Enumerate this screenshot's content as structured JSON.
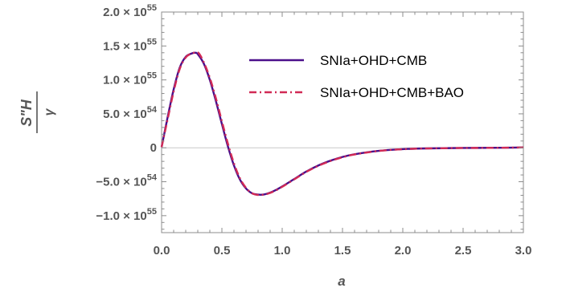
{
  "chart_data": {
    "type": "line",
    "xlabel": "a",
    "ylabel": {
      "numerator": "S\"H",
      "denominator": "γ"
    },
    "xlim": [
      0,
      3
    ],
    "ylim": [
      -1.25e+55,
      2e+55
    ],
    "x_ticks": [
      {
        "value": 0.0,
        "label": "0.0"
      },
      {
        "value": 0.5,
        "label": "0.5"
      },
      {
        "value": 1.0,
        "label": "1.0"
      },
      {
        "value": 1.5,
        "label": "1.5"
      },
      {
        "value": 2.0,
        "label": "2.0"
      },
      {
        "value": 2.5,
        "label": "2.5"
      },
      {
        "value": 3.0,
        "label": "3.0"
      }
    ],
    "y_ticks": [
      {
        "value": 2e+55,
        "mantissa": "2.0 × 10",
        "exp": "55"
      },
      {
        "value": 1.5e+55,
        "mantissa": "1.5 × 10",
        "exp": "55"
      },
      {
        "value": 1e+55,
        "mantissa": "1.0 × 10",
        "exp": "55"
      },
      {
        "value": 5e+54,
        "mantissa": "5.0 × 10",
        "exp": "54"
      },
      {
        "value": 0,
        "mantissa": "0",
        "exp": ""
      },
      {
        "value": -5e+54,
        "mantissa": "−5.0 × 10",
        "exp": "54"
      },
      {
        "value": -1e+55,
        "mantissa": "−1.0 × 10",
        "exp": "55"
      }
    ],
    "series": [
      {
        "name": "SNIa+OHD+CMB",
        "color": "#4b0f8a",
        "style": "solid",
        "x": [
          0.0,
          0.05,
          0.1,
          0.15,
          0.2,
          0.25,
          0.28,
          0.3,
          0.35,
          0.4,
          0.45,
          0.5,
          0.55,
          0.6,
          0.65,
          0.7,
          0.75,
          0.8,
          0.84,
          0.9,
          0.95,
          1.0,
          1.1,
          1.2,
          1.3,
          1.4,
          1.5,
          1.6,
          1.8,
          2.0,
          2.2,
          2.5,
          2.8,
          3.0
        ],
        "y": [
          1e+53,
          4.5e+54,
          8.6e+54,
          1.18e+55,
          1.34e+55,
          1.39e+55,
          1.4e+55,
          1.38e+55,
          1.24e+55,
          1e+55,
          6.9e+54,
          3.5e+54,
          2e+53,
          -2.6e+54,
          -4.7e+54,
          -6e+54,
          -6.7e+54,
          -6.9e+54,
          -6.9e+54,
          -6.6e+54,
          -6.2e+54,
          -5.7e+54,
          -4.6e+54,
          -3.5e+54,
          -2.6e+54,
          -1.9e+54,
          -1.35e+54,
          -9.5e+53,
          -4.5e+53,
          -2e+53,
          -9e+52,
          -3e+52,
          0,
          5e+52
        ]
      },
      {
        "name": "SNIa+OHD+CMB+BAO",
        "color": "#d12a55",
        "style": "dashdot",
        "x": [
          0.0,
          0.05,
          0.1,
          0.15,
          0.2,
          0.25,
          0.29,
          0.31,
          0.35,
          0.4,
          0.45,
          0.5,
          0.55,
          0.6,
          0.65,
          0.7,
          0.75,
          0.8,
          0.85,
          0.9,
          0.95,
          1.0,
          1.1,
          1.2,
          1.3,
          1.4,
          1.5,
          1.6,
          1.8,
          2.0,
          2.2,
          2.5,
          2.8,
          3.0
        ],
        "y": [
          1e+53,
          4.2e+54,
          8.3e+54,
          1.16e+55,
          1.33e+55,
          1.39e+55,
          1.4e+55,
          1.39e+55,
          1.26e+55,
          1.03e+55,
          7.3e+54,
          3.9e+54,
          6e+53,
          -2.3e+54,
          -4.5e+54,
          -5.9e+54,
          -6.7e+54,
          -6.95e+54,
          -6.9e+54,
          -6.65e+54,
          -6.25e+54,
          -5.75e+54,
          -4.65e+54,
          -3.55e+54,
          -2.65e+54,
          -1.95e+54,
          -1.4e+54,
          -9.8e+53,
          -4.7e+53,
          -2.1e+53,
          -9.5e+52,
          -3e+52,
          0,
          5e+52
        ]
      }
    ],
    "legend_position": "top-right",
    "grid": false
  }
}
